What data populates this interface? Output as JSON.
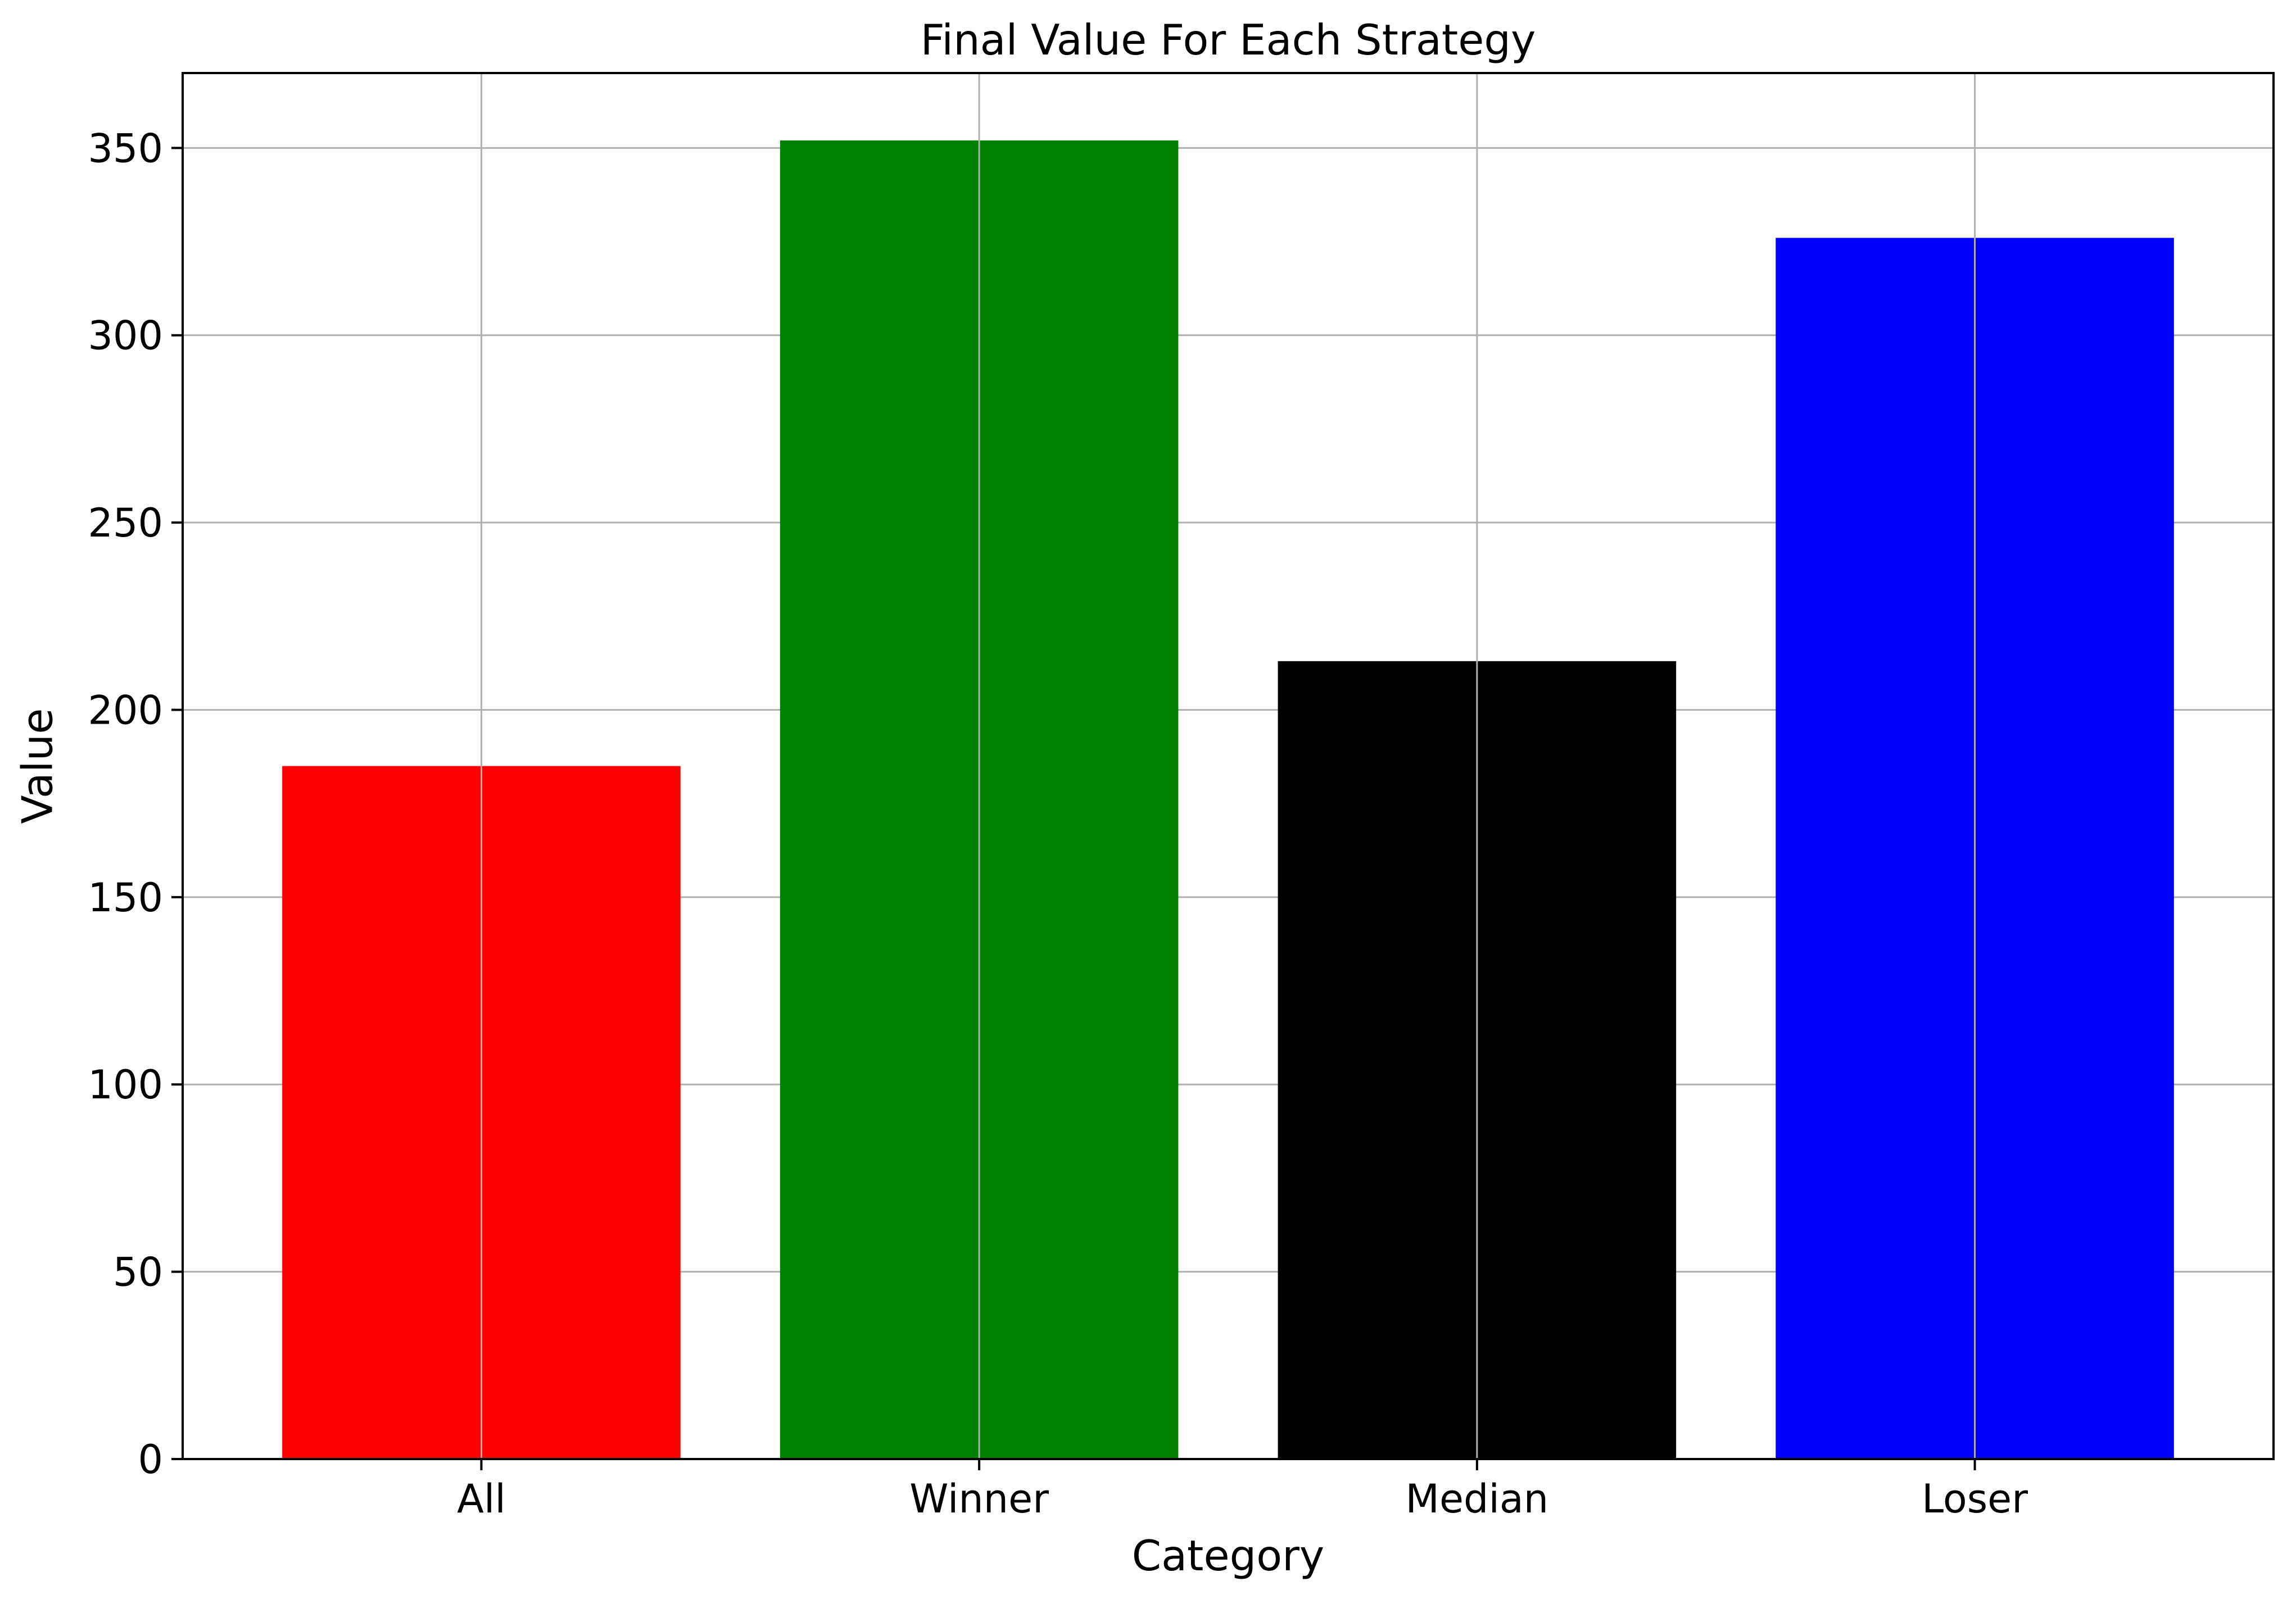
{
  "chart_data": {
    "type": "bar",
    "title": "Final Value For Each Strategy",
    "xlabel": "Category",
    "ylabel": "Value",
    "categories": [
      "All",
      "Winner",
      "Median",
      "Loser"
    ],
    "values": [
      185,
      352,
      213,
      326
    ],
    "colors": [
      "#ff0000",
      "#008000",
      "#000000",
      "#0000ff"
    ],
    "ylim": [
      0,
      370
    ],
    "yticks": [
      0,
      50,
      100,
      150,
      200,
      250,
      300,
      350
    ],
    "ytick_labels": [
      "0",
      "50",
      "100",
      "150",
      "200",
      "250",
      "300",
      "350"
    ],
    "grid": true,
    "grid_color": "#b0b0b0"
  }
}
